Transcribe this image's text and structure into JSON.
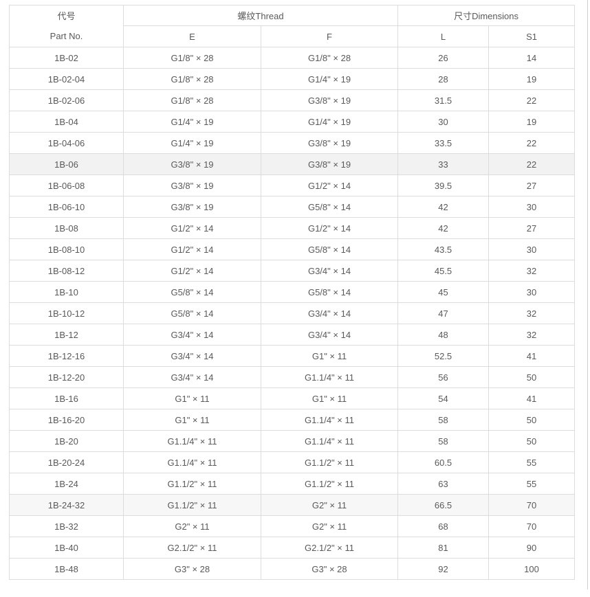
{
  "colors": {
    "text": "#595959",
    "border": "#dcdcdc",
    "background": "#ffffff",
    "row_highlight": "#f2f2f2",
    "row_highlight_subtle": "#f7f7f7",
    "right_edge_line": "#cccccc"
  },
  "table": {
    "header": {
      "part_no_zh": "代号",
      "part_no_en": "Part No.",
      "thread_group": "螺纹Thread",
      "dimensions_group": "尺寸Dimensions",
      "col_e": "E",
      "col_f": "F",
      "col_l": "L",
      "col_s1": "S1"
    },
    "rows": [
      {
        "part": "1B-02",
        "e": "G1/8\" × 28",
        "f": "G1/8\" × 28",
        "l": "26",
        "s1": "14",
        "highlight": "none"
      },
      {
        "part": "1B-02-04",
        "e": "G1/8\" × 28",
        "f": "G1/4\" × 19",
        "l": "28",
        "s1": "19",
        "highlight": "none"
      },
      {
        "part": "1B-02-06",
        "e": "G1/8\" × 28",
        "f": "G3/8\" × 19",
        "l": "31.5",
        "s1": "22",
        "highlight": "none"
      },
      {
        "part": "1B-04",
        "e": "G1/4\" × 19",
        "f": "G1/4\" × 19",
        "l": "30",
        "s1": "19",
        "highlight": "none"
      },
      {
        "part": "1B-04-06",
        "e": "G1/4\" × 19",
        "f": "G3/8\" × 19",
        "l": "33.5",
        "s1": "22",
        "highlight": "none"
      },
      {
        "part": "1B-06",
        "e": "G3/8\" × 19",
        "f": "G3/8\" × 19",
        "l": "33",
        "s1": "22",
        "highlight": "strong"
      },
      {
        "part": "1B-06-08",
        "e": "G3/8\" × 19",
        "f": "G1/2\" × 14",
        "l": "39.5",
        "s1": "27",
        "highlight": "none"
      },
      {
        "part": "1B-06-10",
        "e": "G3/8\" × 19",
        "f": "G5/8\" × 14",
        "l": "42",
        "s1": "30",
        "highlight": "none"
      },
      {
        "part": "1B-08",
        "e": "G1/2\" × 14",
        "f": "G1/2\" × 14",
        "l": "42",
        "s1": "27",
        "highlight": "none"
      },
      {
        "part": "1B-08-10",
        "e": "G1/2\" × 14",
        "f": "G5/8\" × 14",
        "l": "43.5",
        "s1": "30",
        "highlight": "none"
      },
      {
        "part": "1B-08-12",
        "e": "G1/2\" × 14",
        "f": "G3/4\" × 14",
        "l": "45.5",
        "s1": "32",
        "highlight": "none"
      },
      {
        "part": "1B-10",
        "e": "G5/8\" × 14",
        "f": "G5/8\" × 14",
        "l": "45",
        "s1": "30",
        "highlight": "none"
      },
      {
        "part": "1B-10-12",
        "e": "G5/8\" × 14",
        "f": "G3/4\" × 14",
        "l": "47",
        "s1": "32",
        "highlight": "none"
      },
      {
        "part": "1B-12",
        "e": "G3/4\" × 14",
        "f": "G3/4\" × 14",
        "l": "48",
        "s1": "32",
        "highlight": "none"
      },
      {
        "part": "1B-12-16",
        "e": "G3/4\" × 14",
        "f": "G1\" × 11",
        "l": "52.5",
        "s1": "41",
        "highlight": "none"
      },
      {
        "part": "1B-12-20",
        "e": "G3/4\" × 14",
        "f": "G1.1/4\" × 11",
        "l": "56",
        "s1": "50",
        "highlight": "none"
      },
      {
        "part": "1B-16",
        "e": "G1\" × 11",
        "f": "G1\" × 11",
        "l": "54",
        "s1": "41",
        "highlight": "none"
      },
      {
        "part": "1B-16-20",
        "e": "G1\" × 11",
        "f": "G1.1/4\" × 11",
        "l": "58",
        "s1": "50",
        "highlight": "none"
      },
      {
        "part": "1B-20",
        "e": "G1.1/4\" × 11",
        "f": "G1.1/4\" × 11",
        "l": "58",
        "s1": "50",
        "highlight": "none"
      },
      {
        "part": "1B-20-24",
        "e": "G1.1/4\" × 11",
        "f": "G1.1/2\" × 11",
        "l": "60.5",
        "s1": "55",
        "highlight": "none"
      },
      {
        "part": "1B-24",
        "e": "G1.1/2\" × 11",
        "f": "G1.1/2\" × 11",
        "l": "63",
        "s1": "55",
        "highlight": "none"
      },
      {
        "part": "1B-24-32",
        "e": "G1.1/2\" × 11",
        "f": "G2\" × 11",
        "l": "66.5",
        "s1": "70",
        "highlight": "subtle"
      },
      {
        "part": "1B-32",
        "e": "G2\" × 11",
        "f": "G2\" × 11",
        "l": "68",
        "s1": "70",
        "highlight": "none"
      },
      {
        "part": "1B-40",
        "e": "G2.1/2\" × 11",
        "f": "G2.1/2\" × 11",
        "l": "81",
        "s1": "90",
        "highlight": "none"
      },
      {
        "part": "1B-48",
        "e": "G3\" × 28",
        "f": "G3\" × 28",
        "l": "92",
        "s1": "100",
        "highlight": "none"
      }
    ]
  }
}
